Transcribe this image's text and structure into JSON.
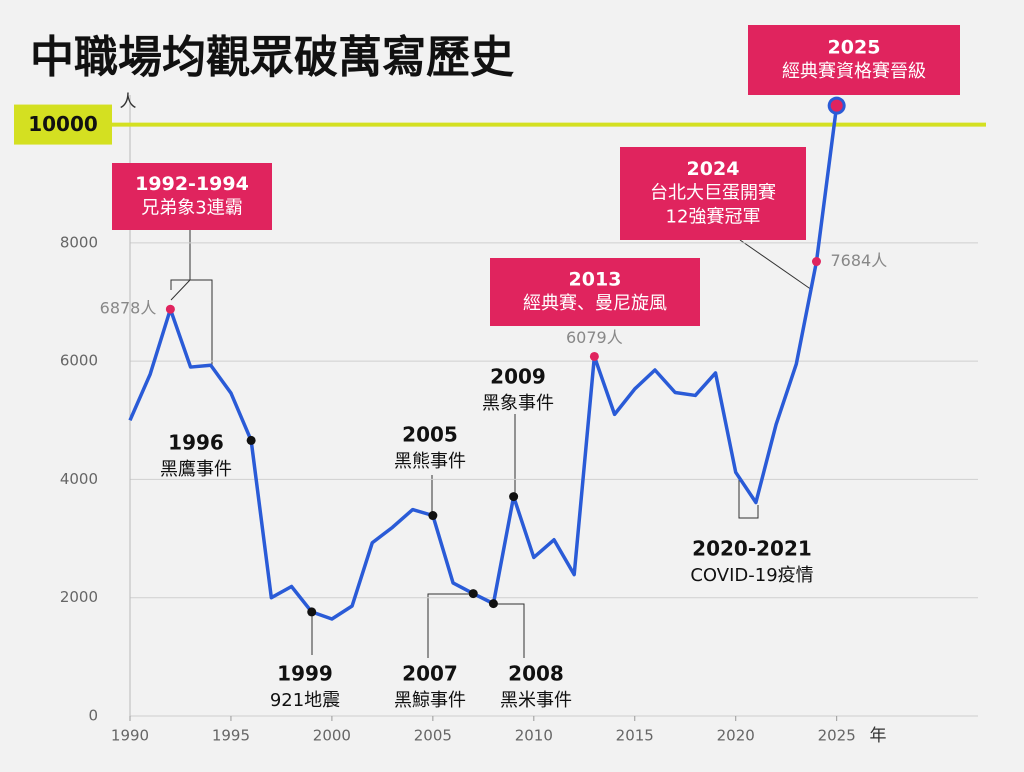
{
  "chart_data": {
    "type": "line",
    "title": "中職場均觀眾破萬寫歷史",
    "y_label": "人",
    "x_label": "年",
    "x": [
      1990,
      1991,
      1992,
      1993,
      1994,
      1995,
      1996,
      1997,
      1998,
      1999,
      2000,
      2001,
      2002,
      2003,
      2004,
      2005,
      2006,
      2007,
      2008,
      2009,
      2010,
      2011,
      2012,
      2013,
      2014,
      2015,
      2016,
      2017,
      2018,
      2019,
      2020,
      2021,
      2022,
      2023,
      2024,
      2025
    ],
    "series": [
      {
        "name": "場均觀眾",
        "color": "#2a5bd7",
        "values": [
          5000,
          5780,
          6878,
          5900,
          5930,
          5460,
          4660,
          2000,
          2190,
          1760,
          1640,
          1860,
          2930,
          3190,
          3490,
          3390,
          2250,
          2070,
          1900,
          3710,
          2680,
          2980,
          2390,
          6079,
          5100,
          5530,
          5850,
          5470,
          5420,
          5800,
          4120,
          3610,
          4930,
          5950,
          7684,
          10320
        ],
        "value_labels": [
          null,
          null,
          "6878人",
          null,
          null,
          null,
          null,
          null,
          null,
          null,
          null,
          null,
          null,
          null,
          null,
          null,
          null,
          null,
          null,
          null,
          null,
          null,
          null,
          "6079人",
          null,
          null,
          null,
          null,
          null,
          null,
          null,
          null,
          null,
          null,
          "7684人",
          null
        ]
      }
    ],
    "xlim": [
      1990,
      2032
    ],
    "ylim": [
      0,
      10500
    ],
    "xticks": [
      1990,
      1995,
      2000,
      2005,
      2010,
      2015,
      2020,
      2025
    ],
    "yticks": [
      0,
      2000,
      4000,
      6000,
      8000
    ],
    "grid": true,
    "highlight_line": 10000,
    "highlight_color": "#d4e021",
    "highlight_points": [
      {
        "x": 1992,
        "color": "#e0245e"
      },
      {
        "x": 1996,
        "color": "#111111"
      },
      {
        "x": 1999,
        "color": "#111111"
      },
      {
        "x": 2005,
        "color": "#111111"
      },
      {
        "x": 2007,
        "color": "#111111"
      },
      {
        "x": 2008,
        "color": "#111111"
      },
      {
        "x": 2009,
        "color": "#111111"
      },
      {
        "x": 2013,
        "color": "#e0245e"
      },
      {
        "x": 2024,
        "color": "#e0245e"
      },
      {
        "x": 2025,
        "color": "#e0245e",
        "outline": "#2a5bd7"
      }
    ],
    "annotations": [
      {
        "lines": [
          "2025",
          "經典賽資格賽晉級"
        ],
        "style": "box"
      },
      {
        "lines": [
          "2024",
          "台北大巨蛋開賽",
          "12強賽冠軍"
        ],
        "style": "box"
      },
      {
        "lines": [
          "2013",
          "經典賽、曼尼旋風"
        ],
        "style": "box"
      },
      {
        "lines": [
          "1992-1994",
          "兄弟象3連霸"
        ],
        "style": "box"
      },
      {
        "lines": [
          "1996",
          "黑鷹事件"
        ],
        "style": "plain"
      },
      {
        "lines": [
          "1999",
          "921地震"
        ],
        "style": "plain"
      },
      {
        "lines": [
          "2005",
          "黑熊事件"
        ],
        "style": "plain"
      },
      {
        "lines": [
          "2007",
          "黑鯨事件"
        ],
        "style": "plain"
      },
      {
        "lines": [
          "2008",
          "黑米事件"
        ],
        "style": "plain"
      },
      {
        "lines": [
          "2009",
          "黑象事件"
        ],
        "style": "plain"
      },
      {
        "lines": [
          "2020-2021",
          "COVID-19疫情"
        ],
        "style": "plain"
      }
    ]
  }
}
